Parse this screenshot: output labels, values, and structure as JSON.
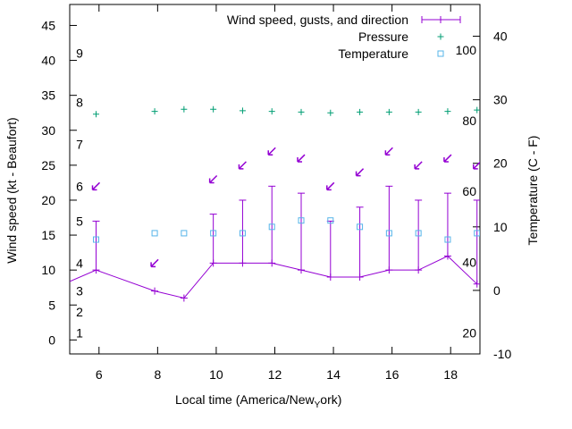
{
  "chart_data": {
    "type": "line",
    "title": "",
    "xlabel": "Local time (America/New",
    "xlabel_sub": "Y",
    "xlabel_end": "ork)",
    "ylabel": "Wind speed (kt - Beaufort)",
    "y2label": "Temperature (C - F)",
    "xlim": [
      5,
      19
    ],
    "ylim": [
      -2,
      48
    ],
    "y2lim": [
      -10,
      45
    ],
    "x_ticks": [
      6,
      8,
      10,
      12,
      14,
      16,
      18
    ],
    "y_ticks": [
      0,
      5,
      10,
      15,
      20,
      25,
      30,
      35,
      40,
      45
    ],
    "y2_ticks": [
      -10,
      0,
      10,
      20,
      30,
      40
    ],
    "beaufort_labels": [
      {
        "label": "1",
        "y": 1
      },
      {
        "label": "2",
        "y": 4
      },
      {
        "label": "3",
        "y": 7
      },
      {
        "label": "4",
        "y": 11
      },
      {
        "label": "5",
        "y": 17
      },
      {
        "label": "6",
        "y": 22
      },
      {
        "label": "7",
        "y": 28
      },
      {
        "label": "8",
        "y": 34
      },
      {
        "label": "9",
        "y": 41
      }
    ],
    "fahrenheit_labels": [
      {
        "label": "20",
        "c": -6.7
      },
      {
        "label": "40",
        "c": 4.4
      },
      {
        "label": "60",
        "c": 15.6
      },
      {
        "label": "80",
        "c": 26.7
      },
      {
        "label": "100",
        "c": 37.8
      }
    ],
    "legend": [
      {
        "name": "Wind speed, gusts, and direction",
        "color": "#9400d3",
        "marker": "line-plus"
      },
      {
        "name": "Pressure",
        "color": "#009e73",
        "marker": "plus"
      },
      {
        "name": "Temperature",
        "color": "#56b4e9",
        "marker": "square"
      }
    ],
    "legend_position": "top-right",
    "series": [
      {
        "key": "wind",
        "x": [
          4.8,
          5.9,
          7.9,
          8.9,
          9.9,
          10.9,
          11.9,
          12.9,
          13.9,
          14.9,
          15.9,
          16.9,
          17.9,
          18.9
        ],
        "values": [
          8,
          10,
          7,
          6,
          11,
          11,
          11,
          10,
          9,
          9,
          10,
          10,
          12,
          8
        ]
      },
      {
        "key": "gusts",
        "x": [
          5.9,
          9.9,
          10.9,
          11.9,
          12.9,
          13.9,
          14.9,
          15.9,
          16.9,
          17.9,
          18.9
        ],
        "values": [
          17,
          18,
          20,
          22,
          21,
          17,
          19,
          22,
          20,
          21,
          20
        ]
      },
      {
        "key": "direction",
        "x": [
          5.9,
          7.9,
          9.9,
          10.9,
          11.9,
          12.9,
          13.9,
          14.9,
          15.9,
          16.9,
          17.9,
          18.9
        ],
        "values": [
          22,
          11,
          23,
          25,
          27,
          26,
          22,
          24,
          27,
          25,
          26,
          25
        ]
      },
      {
        "key": "pressure",
        "x": [
          5.9,
          7.9,
          8.9,
          9.9,
          10.9,
          11.9,
          12.9,
          13.9,
          14.9,
          15.9,
          16.9,
          17.9,
          18.9
        ],
        "values": [
          32.3,
          32.7,
          33.0,
          33.0,
          32.8,
          32.7,
          32.6,
          32.5,
          32.6,
          32.6,
          32.6,
          32.7,
          32.9
        ]
      },
      {
        "key": "temperature",
        "x": [
          5.9,
          7.9,
          8.9,
          9.9,
          10.9,
          11.9,
          12.9,
          13.9,
          14.9,
          15.9,
          16.9,
          17.9,
          18.9
        ],
        "values": [
          8,
          9,
          9,
          9,
          9,
          10,
          11,
          11,
          10,
          9,
          9,
          8,
          9
        ]
      }
    ]
  }
}
